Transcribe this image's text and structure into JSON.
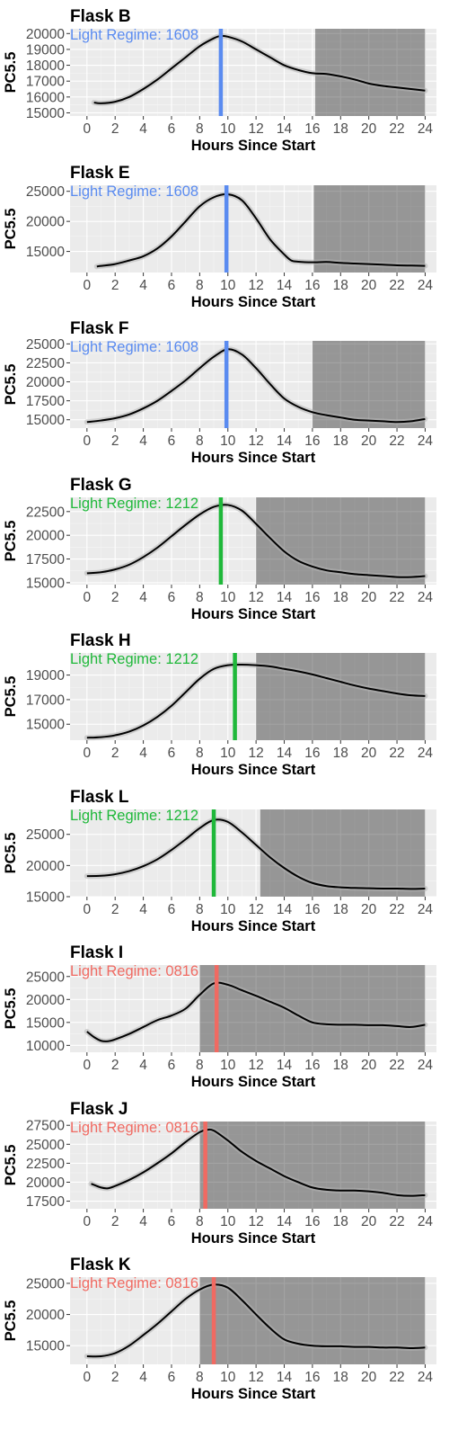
{
  "chart_data": [
    {
      "type": "line",
      "title": "Flask B",
      "xlabel": "Hours Since Start",
      "ylabel": "PC5.5",
      "xlim": [
        -1.2,
        24.8
      ],
      "ylim": [
        14800,
        20300
      ],
      "xticks": [
        0,
        2,
        4,
        6,
        8,
        10,
        12,
        14,
        16,
        18,
        20,
        22,
        24
      ],
      "xtick_labels": [
        "0",
        "2",
        "4",
        "6",
        "8",
        "10",
        "12",
        "14",
        "16",
        "18",
        "20",
        "22",
        "24"
      ],
      "yticks": [
        15000,
        16000,
        17000,
        18000,
        19000,
        20000
      ],
      "ytick_labels": [
        "15000",
        "16000",
        "17000",
        "18000",
        "19000",
        "20000"
      ],
      "annotation": "Light Regime:  1608",
      "annotation_color": "#5a8bf0",
      "vline_x": 9.5,
      "vline_color": "#5a8bf0",
      "dark_start": 16.2,
      "dark_end": 24.0,
      "grid": true,
      "series": [
        {
          "x": [
            0.5,
            1,
            2,
            3,
            4,
            5,
            6,
            7,
            8,
            9,
            9.5,
            10,
            11,
            12,
            13,
            14,
            15,
            16,
            17,
            18,
            19,
            20,
            21,
            22,
            23,
            24
          ],
          "y": [
            15650,
            15600,
            15700,
            16000,
            16500,
            17100,
            17800,
            18500,
            19200,
            19700,
            19850,
            19800,
            19500,
            19000,
            18500,
            18000,
            17700,
            17500,
            17450,
            17300,
            17100,
            16850,
            16700,
            16600,
            16500,
            16400
          ]
        }
      ]
    },
    {
      "type": "line",
      "title": "Flask E",
      "xlabel": "Hours Since Start",
      "ylabel": "PC5.5",
      "xlim": [
        -1.2,
        24.8
      ],
      "ylim": [
        11500,
        26000
      ],
      "xticks": [
        0,
        2,
        4,
        6,
        8,
        10,
        12,
        14,
        16,
        18,
        20,
        22,
        24
      ],
      "xtick_labels": [
        "0",
        "2",
        "4",
        "6",
        "8",
        "10",
        "12",
        "14",
        "16",
        "18",
        "20",
        "22",
        "24"
      ],
      "yticks": [
        15000,
        20000,
        25000
      ],
      "ytick_labels": [
        "15000",
        "20000",
        "25000"
      ],
      "annotation": "Light Regime:  1608",
      "annotation_color": "#5a8bf0",
      "vline_x": 9.9,
      "vline_color": "#5a8bf0",
      "dark_start": 16.1,
      "dark_end": 24.0,
      "grid": true,
      "series": [
        {
          "x": [
            0.7,
            1,
            2,
            3,
            4,
            5,
            6,
            7,
            8,
            9,
            10,
            11,
            12,
            13,
            14,
            14.5,
            15,
            16,
            17,
            18,
            19,
            20,
            21,
            22,
            23,
            24
          ],
          "y": [
            12500,
            12600,
            12900,
            13500,
            14200,
            15500,
            17500,
            20000,
            22500,
            24000,
            24500,
            23500,
            20500,
            17000,
            14500,
            13500,
            13300,
            13200,
            13250,
            13100,
            13000,
            12900,
            12800,
            12700,
            12650,
            12600
          ]
        }
      ]
    },
    {
      "type": "line",
      "title": "Flask F",
      "xlabel": "Hours Since Start",
      "ylabel": "PC5.5",
      "xlim": [
        -1.2,
        24.8
      ],
      "ylim": [
        13900,
        25400
      ],
      "xticks": [
        0,
        2,
        4,
        6,
        8,
        10,
        12,
        14,
        16,
        18,
        20,
        22,
        24
      ],
      "xtick_labels": [
        "0",
        "2",
        "4",
        "6",
        "8",
        "10",
        "12",
        "14",
        "16",
        "18",
        "20",
        "22",
        "24"
      ],
      "yticks": [
        15000,
        17500,
        20000,
        22500,
        25000
      ],
      "ytick_labels": [
        "15000",
        "17500",
        "20000",
        "22500",
        "25000"
      ],
      "annotation": "Light Regime:  1608",
      "annotation_color": "#5a8bf0",
      "vline_x": 9.9,
      "vline_color": "#5a8bf0",
      "dark_start": 16.0,
      "dark_end": 24.0,
      "grid": true,
      "series": [
        {
          "x": [
            0,
            1,
            2,
            3,
            4,
            5,
            6,
            7,
            8,
            9,
            10,
            11,
            12,
            13,
            14,
            15,
            16,
            17,
            18,
            19,
            20,
            21,
            22,
            23,
            24
          ],
          "y": [
            14700,
            14900,
            15200,
            15700,
            16500,
            17500,
            18800,
            20200,
            21800,
            23300,
            24300,
            23600,
            21800,
            19700,
            17800,
            16700,
            16000,
            15600,
            15300,
            15000,
            14900,
            14800,
            14700,
            14800,
            15100
          ]
        }
      ]
    },
    {
      "type": "line",
      "title": "Flask G",
      "xlabel": "Hours Since Start",
      "ylabel": "PC5.5",
      "xlim": [
        -1.2,
        24.8
      ],
      "ylim": [
        14800,
        24000
      ],
      "xticks": [
        0,
        2,
        4,
        6,
        8,
        10,
        12,
        14,
        16,
        18,
        20,
        22,
        24
      ],
      "xtick_labels": [
        "0",
        "2",
        "4",
        "6",
        "8",
        "10",
        "12",
        "14",
        "16",
        "18",
        "20",
        "22",
        "24"
      ],
      "yticks": [
        15000,
        17500,
        20000,
        22500
      ],
      "ytick_labels": [
        "15000",
        "17500",
        "20000",
        "22500"
      ],
      "annotation": "Light Regime:  1212",
      "annotation_color": "#1fb83a",
      "vline_x": 9.5,
      "vline_color": "#1fb83a",
      "dark_start": 12.0,
      "dark_end": 24.0,
      "grid": true,
      "series": [
        {
          "x": [
            0,
            1,
            2,
            3,
            4,
            5,
            6,
            7,
            8,
            9,
            10,
            11,
            12,
            13,
            14,
            15,
            16,
            17,
            18,
            19,
            20,
            21,
            22,
            23,
            24
          ],
          "y": [
            16000,
            16100,
            16400,
            16900,
            17700,
            18700,
            19900,
            21100,
            22200,
            23000,
            23200,
            22600,
            21200,
            19700,
            18300,
            17300,
            16700,
            16300,
            16100,
            15900,
            15800,
            15700,
            15600,
            15600,
            15700
          ]
        }
      ]
    },
    {
      "type": "line",
      "title": "Flask H",
      "xlabel": "Hours Since Start",
      "ylabel": "PC5.5",
      "xlim": [
        -1.2,
        24.8
      ],
      "ylim": [
        13700,
        20800
      ],
      "xticks": [
        0,
        2,
        4,
        6,
        8,
        10,
        12,
        14,
        16,
        18,
        20,
        22,
        24
      ],
      "xtick_labels": [
        "0",
        "2",
        "4",
        "6",
        "8",
        "10",
        "12",
        "14",
        "16",
        "18",
        "20",
        "22",
        "24"
      ],
      "yticks": [
        15000,
        17000,
        19000
      ],
      "ytick_labels": [
        "15000",
        "17000",
        "19000"
      ],
      "annotation": "Light Regime:  1212",
      "annotation_color": "#1fb83a",
      "vline_x": 10.5,
      "vline_color": "#1fb83a",
      "dark_start": 12.0,
      "dark_end": 24.0,
      "grid": true,
      "series": [
        {
          "x": [
            0,
            1,
            2,
            3,
            4,
            5,
            6,
            7,
            8,
            9,
            10,
            11,
            12,
            13,
            14,
            15,
            16,
            17,
            18,
            19,
            20,
            21,
            22,
            23,
            24
          ],
          "y": [
            13900,
            13950,
            14100,
            14400,
            14900,
            15600,
            16500,
            17600,
            18700,
            19500,
            19800,
            19850,
            19800,
            19700,
            19500,
            19300,
            19050,
            18750,
            18450,
            18150,
            17900,
            17700,
            17500,
            17350,
            17300
          ]
        }
      ]
    },
    {
      "type": "line",
      "title": "Flask L",
      "xlabel": "Hours Since Start",
      "ylabel": "PC5.5",
      "xlim": [
        -1.2,
        24.8
      ],
      "ylim": [
        15000,
        29000
      ],
      "xticks": [
        0,
        2,
        4,
        6,
        8,
        10,
        12,
        14,
        16,
        18,
        20,
        22,
        24
      ],
      "xtick_labels": [
        "0",
        "2",
        "4",
        "6",
        "8",
        "10",
        "12",
        "14",
        "16",
        "18",
        "20",
        "22",
        "24"
      ],
      "yticks": [
        15000,
        20000,
        25000
      ],
      "ytick_labels": [
        "15000",
        "20000",
        "25000"
      ],
      "annotation": "Light Regime:  1212",
      "annotation_color": "#1fb83a",
      "vline_x": 9.0,
      "vline_color": "#1fb83a",
      "dark_start": 12.3,
      "dark_end": 24.0,
      "grid": true,
      "series": [
        {
          "x": [
            0,
            1,
            2,
            3,
            4,
            5,
            6,
            7,
            8,
            9,
            10,
            11,
            12,
            13,
            14,
            15,
            16,
            17,
            18,
            19,
            20,
            21,
            22,
            23,
            24
          ],
          "y": [
            18300,
            18350,
            18600,
            19100,
            19900,
            21000,
            22500,
            24200,
            26000,
            27300,
            27000,
            25300,
            23300,
            21300,
            19600,
            18200,
            17200,
            16700,
            16500,
            16400,
            16350,
            16300,
            16300,
            16250,
            16300
          ]
        }
      ]
    },
    {
      "type": "line",
      "title": "Flask I",
      "xlabel": "Hours Since Start",
      "ylabel": "PC5.5",
      "xlim": [
        -1.2,
        24.8
      ],
      "ylim": [
        8500,
        27500
      ],
      "xticks": [
        0,
        2,
        4,
        6,
        8,
        10,
        12,
        14,
        16,
        18,
        20,
        22,
        24
      ],
      "xtick_labels": [
        "0",
        "2",
        "4",
        "6",
        "8",
        "10",
        "12",
        "14",
        "16",
        "18",
        "20",
        "22",
        "24"
      ],
      "yticks": [
        10000,
        15000,
        20000,
        25000
      ],
      "ytick_labels": [
        "10000",
        "15000",
        "20000",
        "25000"
      ],
      "annotation": "Light Regime:  0816",
      "annotation_color": "#f06a62",
      "vline_x": 9.2,
      "vline_color": "#f06a62",
      "dark_start": 8.0,
      "dark_end": 24.0,
      "grid": true,
      "series": [
        {
          "x": [
            0,
            0.5,
            1,
            1.5,
            2,
            3,
            4,
            5,
            6,
            7,
            8,
            9,
            10,
            11,
            12,
            13,
            14,
            15,
            16,
            17,
            18,
            19,
            20,
            21,
            22,
            23,
            24
          ],
          "y": [
            13000,
            11800,
            11000,
            10900,
            11300,
            12500,
            14000,
            15500,
            16500,
            18000,
            21000,
            23500,
            23200,
            22000,
            20800,
            19500,
            18200,
            16500,
            15000,
            14600,
            14500,
            14500,
            14400,
            14400,
            14200,
            14000,
            14500
          ]
        }
      ]
    },
    {
      "type": "line",
      "title": "Flask J",
      "xlabel": "Hours Since Start",
      "ylabel": "PC5.5",
      "xlim": [
        -1.2,
        24.8
      ],
      "ylim": [
        16500,
        28000
      ],
      "xticks": [
        0,
        2,
        4,
        6,
        8,
        10,
        12,
        14,
        16,
        18,
        20,
        22,
        24
      ],
      "xtick_labels": [
        "0",
        "2",
        "4",
        "6",
        "8",
        "10",
        "12",
        "14",
        "16",
        "18",
        "20",
        "22",
        "24"
      ],
      "yticks": [
        17500,
        20000,
        22500,
        25000,
        27500
      ],
      "ytick_labels": [
        "17500",
        "20000",
        "22500",
        "25000",
        "27500"
      ],
      "annotation": "Light Regime:  0816",
      "annotation_color": "#f06a62",
      "vline_x": 8.4,
      "vline_color": "#f06a62",
      "dark_start": 8.0,
      "dark_end": 24.0,
      "grid": true,
      "series": [
        {
          "x": [
            0.3,
            1,
            1.5,
            2,
            3,
            4,
            5,
            6,
            7,
            8,
            8.5,
            9,
            10,
            11,
            12,
            13,
            14,
            15,
            16,
            17,
            18,
            19,
            20,
            21,
            22,
            23,
            24
          ],
          "y": [
            19800,
            19300,
            19200,
            19500,
            20300,
            21300,
            22500,
            23800,
            25300,
            26600,
            26900,
            26800,
            25500,
            24000,
            22800,
            21800,
            20800,
            20000,
            19300,
            19000,
            18900,
            18900,
            18800,
            18600,
            18300,
            18200,
            18300
          ]
        }
      ]
    },
    {
      "type": "line",
      "title": "Flask K",
      "xlabel": "Hours Since Start",
      "ylabel": "PC5.5",
      "xlim": [
        -1.2,
        24.8
      ],
      "ylim": [
        12000,
        26000
      ],
      "xticks": [
        0,
        2,
        4,
        6,
        8,
        10,
        12,
        14,
        16,
        18,
        20,
        22,
        24
      ],
      "xtick_labels": [
        "0",
        "2",
        "4",
        "6",
        "8",
        "10",
        "12",
        "14",
        "16",
        "18",
        "20",
        "22",
        "24"
      ],
      "yticks": [
        15000,
        20000,
        25000
      ],
      "ytick_labels": [
        "15000",
        "20000",
        "25000"
      ],
      "annotation": "Light Regime:  0816",
      "annotation_color": "#f06a62",
      "vline_x": 9.0,
      "vline_color": "#f06a62",
      "dark_start": 8.0,
      "dark_end": 24.0,
      "grid": true,
      "series": [
        {
          "x": [
            0,
            1,
            2,
            3,
            4,
            5,
            6,
            7,
            8,
            9,
            10,
            11,
            12,
            13,
            14,
            15,
            16,
            17,
            18,
            19,
            20,
            21,
            22,
            23,
            24
          ],
          "y": [
            13300,
            13300,
            13800,
            15000,
            16700,
            18500,
            20500,
            22500,
            24000,
            24800,
            24300,
            22300,
            20000,
            17800,
            16000,
            15300,
            15000,
            14900,
            14900,
            14800,
            14800,
            14700,
            14700,
            14600,
            14700
          ]
        }
      ]
    }
  ]
}
